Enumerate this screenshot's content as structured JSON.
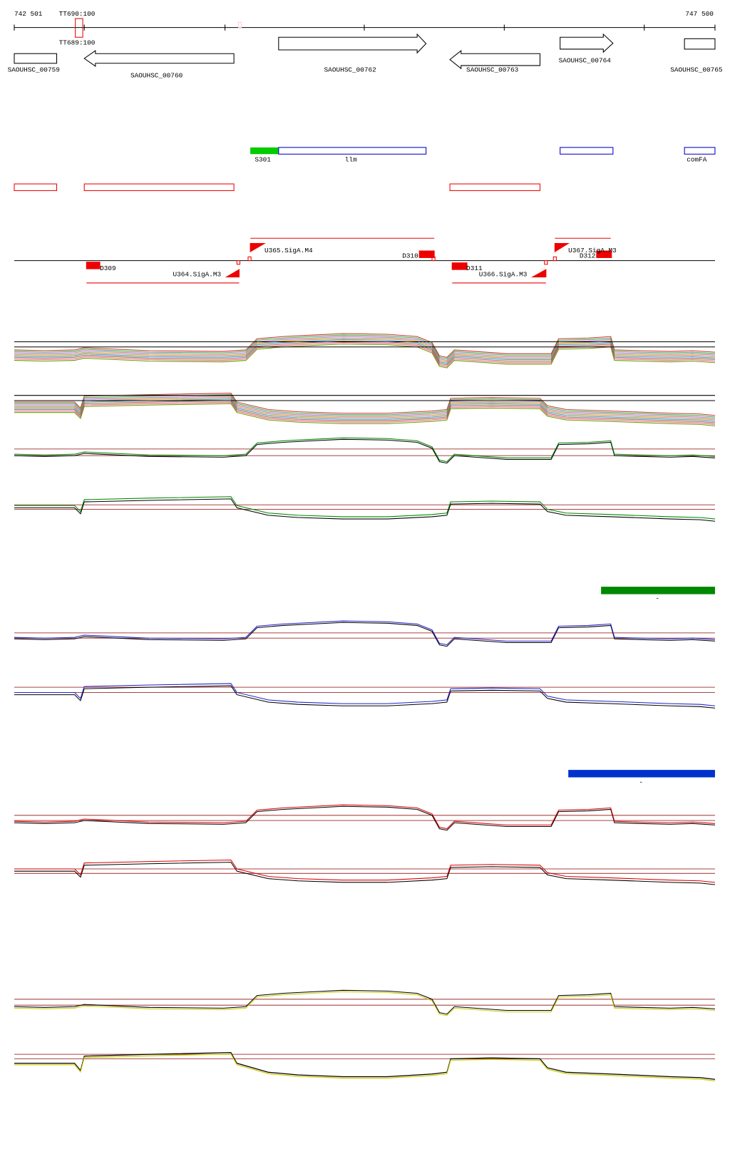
{
  "ruler": {
    "start": "742 501",
    "end": "747 500"
  },
  "terminators": [
    "TT690:100",
    "TT689:100"
  ],
  "genes": [
    "SAOUHSC_00759",
    "SAOUHSC_00760",
    "SAOUHSC_00762",
    "SAOUHSC_00763",
    "SAOUHSC_00764",
    "SAOUHSC_00765"
  ],
  "annotations": [
    "S301",
    "llm",
    "comFA"
  ],
  "features": [
    "D309",
    "U364.SigA.M3",
    "U365.SigA.M4",
    "D310",
    "D311",
    "U366.SigA.M3",
    "U367.SigA.M3",
    "D312"
  ],
  "scale_marks": [
    "-",
    "-"
  ]
}
